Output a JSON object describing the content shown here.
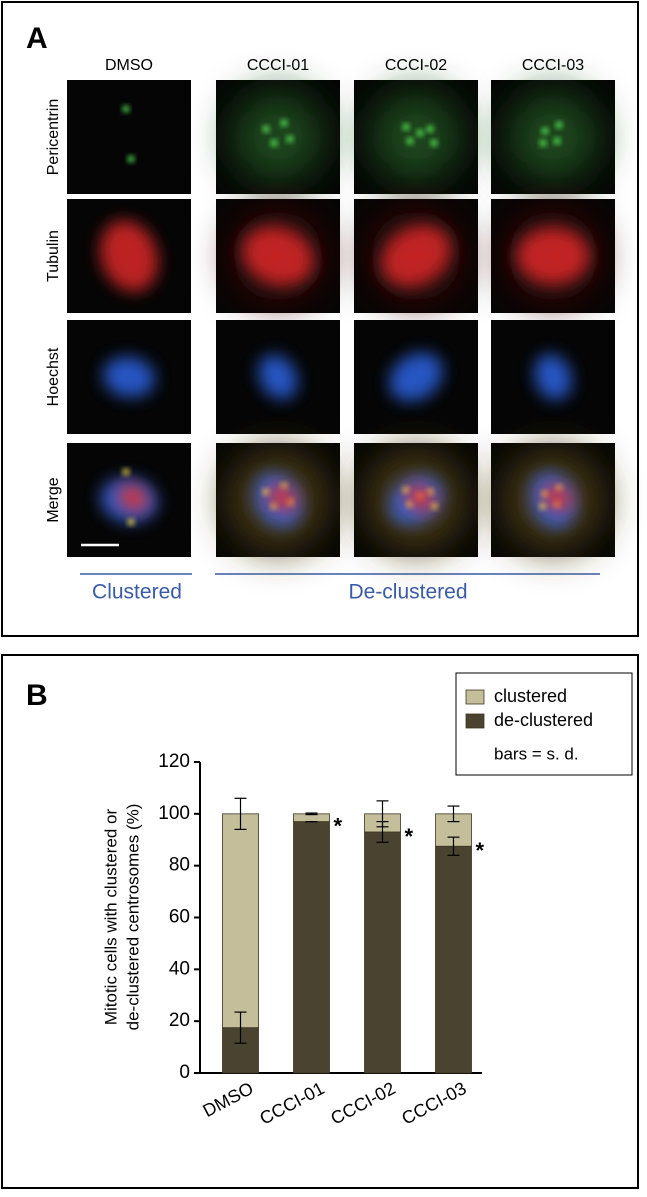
{
  "panel_a": {
    "label": "A",
    "columns": [
      "DMSO",
      "CCCI-01",
      "CCCI-02",
      "CCCI-03"
    ],
    "rows": [
      "Pericentrin",
      "Tubulin",
      "Hoechst",
      "Merge"
    ],
    "groups": [
      "Clustered",
      "De-clustered"
    ]
  },
  "chart_data": {
    "type": "stacked_bar",
    "label": "B",
    "y_label": [
      "Mitotic cells with clustered or",
      "de-clustered centrosomes (%)"
    ],
    "categories": [
      "DMSO",
      "CCCI-01",
      "CCCI-02",
      "CCCI-03"
    ],
    "series": [
      {
        "name": "de-clustered",
        "color": "#4a4330",
        "values": [
          17.5,
          97,
          93,
          87.5
        ],
        "errors": [
          6,
          0,
          4,
          3.5
        ]
      },
      {
        "name": "clustered",
        "color": "#c4bf9a",
        "values": [
          82.5,
          3,
          7,
          12.5
        ],
        "errors": [
          6,
          0.3,
          5,
          3
        ]
      }
    ],
    "significance": [
      null,
      "*",
      "*",
      "*"
    ],
    "legend_note": "bars = s. d.",
    "ylim": [
      0,
      120
    ],
    "yticks": [
      0,
      20,
      40,
      60,
      80,
      100,
      120
    ]
  }
}
